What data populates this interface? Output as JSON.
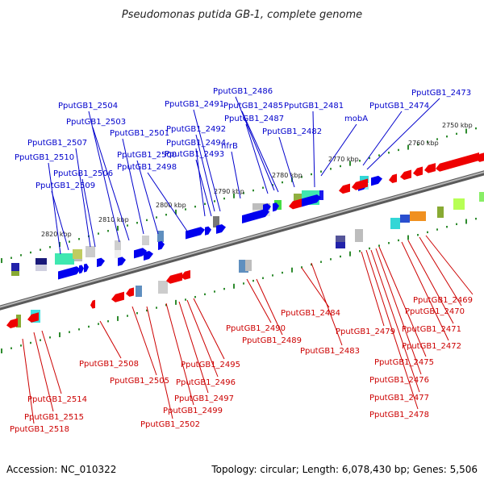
{
  "title": "Pseudomonas putida GB-1, complete genome",
  "footer": {
    "accession": "Accession: NC_010322",
    "stats": "Topology: circular; Length: 6,078,430 bp; Genes: 5,506"
  },
  "colors": {
    "forward_gene": "#0000ee",
    "reverse_gene": "#ee0000",
    "forward_label": "#0000cc",
    "reverse_label": "#cc0000",
    "backbone": "#8a8a8a",
    "tick": "#2e8b2e"
  },
  "scale_labels": [
    "2750 kbp",
    "2760 kbp",
    "2770 kbp",
    "2780 kbp",
    "2790 kbp",
    "2800 kbp",
    "2810 kbp",
    "2820 kbp"
  ],
  "forward_labels": [
    "PputGB1_2473",
    "PputGB1_2474",
    "mobA",
    "PputGB1_2481",
    "PputGB1_2482",
    "PputGB1_2485",
    "PputGB1_2486",
    "PputGB1_2487",
    "nfrB",
    "PputGB1_2491",
    "PputGB1_2492",
    "PputGB1_2493",
    "PputGB1_2494",
    "PputGB1_2498",
    "PputGB1_2500",
    "PputGB1_2501",
    "PputGB1_2503",
    "PputGB1_2504",
    "PputGB1_2506",
    "PputGB1_2507",
    "PputGB1_2509",
    "PputGB1_2510"
  ],
  "reverse_labels": [
    "PputGB1_2469",
    "PputGB1_2470",
    "PputGB1_2471",
    "PputGB1_2472",
    "PputGB1_2475",
    "PputGB1_2476",
    "PputGB1_2477",
    "PputGB1_2478",
    "PputGB1_2479",
    "PputGB1_2483",
    "PputGB1_2484",
    "PputGB1_2489",
    "PputGB1_2490",
    "PputGB1_2495",
    "PputGB1_2496",
    "PputGB1_2497",
    "PputGB1_2499",
    "PputGB1_2502",
    "PputGB1_2505",
    "PputGB1_2508",
    "PputGB1_2514",
    "PputGB1_2515",
    "PputGB1_2518"
  ]
}
